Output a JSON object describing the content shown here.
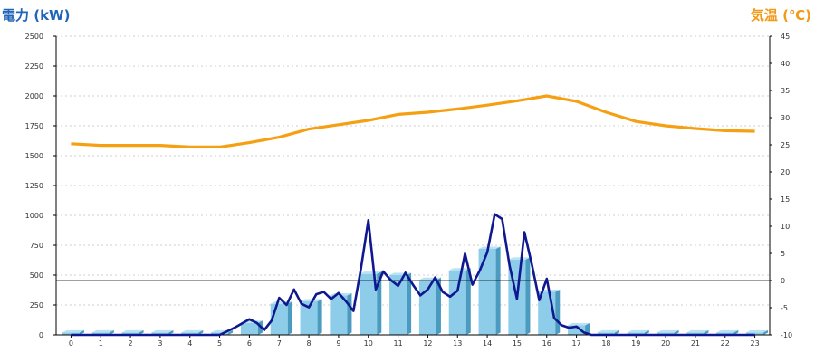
{
  "chart_data": {
    "type": "bar",
    "left_axis_title": "電力 (kW)",
    "right_axis_title": "気温 (℃)",
    "ylim": [
      0,
      2500
    ],
    "yticks": [
      0,
      250,
      500,
      750,
      1000,
      1250,
      1500,
      1750,
      2000,
      2250,
      2500
    ],
    "y2lim": [
      -10,
      45
    ],
    "y2ticks": [
      -10,
      -5,
      0,
      5,
      10,
      15,
      20,
      25,
      30,
      35,
      40,
      45
    ],
    "x_ticks": [
      "0",
      "1",
      "2",
      "3",
      "4",
      "5",
      "6",
      "7",
      "8",
      "9",
      "10",
      "11",
      "12",
      "13",
      "14",
      "15",
      "16",
      "17",
      "18",
      "19",
      "20",
      "21",
      "22",
      "23"
    ],
    "grid": true,
    "reference_line": {
      "axis": "right",
      "value": 0
    },
    "colors": {
      "bar": "#8ecdea",
      "bar_side": "#4a9bbf",
      "bar_top": "#b9e2f3",
      "power_line": "#101890",
      "temp_line": "#f5a013"
    },
    "series": [
      {
        "type": "bar",
        "values": [
          20,
          20,
          20,
          20,
          20,
          20,
          100,
          260,
          280,
          330,
          510,
          500,
          460,
          540,
          720,
          630,
          360,
          80,
          20,
          20,
          20,
          20,
          20,
          20
        ]
      },
      {
        "type": "line",
        "axis": "left",
        "x": [
          0,
          1,
          2,
          3,
          4,
          5,
          5.5,
          6,
          6.25,
          6.5,
          6.75,
          7,
          7.25,
          7.5,
          7.75,
          8,
          8.25,
          8.5,
          8.75,
          9,
          9.25,
          9.5,
          9.75,
          10,
          10.25,
          10.5,
          10.75,
          11,
          11.25,
          11.5,
          11.75,
          12,
          12.25,
          12.5,
          12.75,
          13,
          13.25,
          13.5,
          13.75,
          14,
          14.25,
          14.5,
          14.75,
          15,
          15.25,
          15.5,
          15.75,
          16,
          16.25,
          16.5,
          16.75,
          17,
          17.25,
          17.5,
          18,
          19,
          20,
          21,
          22,
          23
        ],
        "y": [
          0,
          0,
          0,
          0,
          0,
          0,
          60,
          130,
          100,
          40,
          120,
          310,
          250,
          380,
          260,
          230,
          340,
          360,
          300,
          350,
          280,
          200,
          550,
          960,
          380,
          530,
          460,
          410,
          520,
          420,
          330,
          380,
          480,
          360,
          320,
          370,
          680,
          420,
          540,
          690,
          1010,
          970,
          580,
          300,
          860,
          590,
          290,
          470,
          140,
          80,
          60,
          70,
          20,
          0,
          0,
          0,
          0,
          0,
          0,
          0
        ]
      },
      {
        "type": "line",
        "axis": "right",
        "x": [
          0,
          1,
          2,
          3,
          4,
          5,
          6,
          7,
          8,
          9,
          10,
          11,
          12,
          13,
          14,
          15,
          16,
          17,
          18,
          19,
          20,
          21,
          22,
          23
        ],
        "values": [
          25.2,
          24.9,
          24.9,
          24.9,
          24.6,
          24.6,
          25.4,
          26.4,
          27.9,
          28.7,
          29.5,
          30.6,
          31.0,
          31.6,
          32.3,
          33.1,
          34.0,
          33.0,
          31.0,
          29.3,
          28.5,
          28.0,
          27.6,
          27.5
        ]
      }
    ]
  }
}
